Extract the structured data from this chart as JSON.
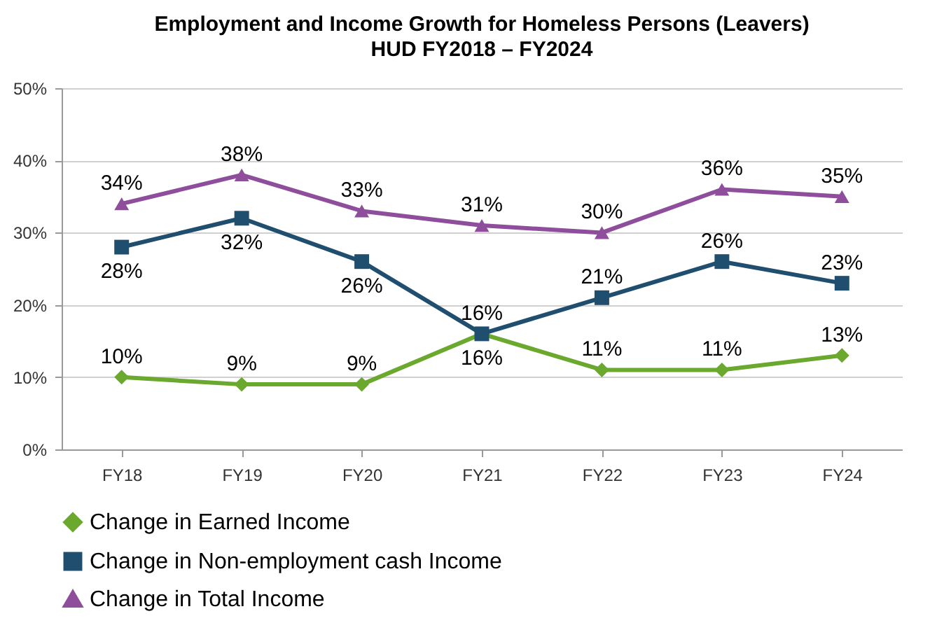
{
  "chart_data": {
    "type": "line",
    "title": "Employment and Income Growth for Homeless Persons (Leavers)",
    "subtitle": "HUD FY2018 – FY2024",
    "categories": [
      "FY18",
      "FY19",
      "FY20",
      "FY21",
      "FY22",
      "FY23",
      "FY24"
    ],
    "series": [
      {
        "name": "Change in Earned Income",
        "color": "#6aa82e",
        "marker": "diamond",
        "values": [
          10,
          9,
          9,
          16,
          11,
          11,
          13
        ],
        "value_labels": [
          "10%",
          "9%",
          "9%",
          "16%",
          "11%",
          "11%",
          "13%"
        ]
      },
      {
        "name": "Change in Non-employment cash Income",
        "color": "#1f4e6e",
        "marker": "square",
        "values": [
          28,
          32,
          26,
          16,
          21,
          26,
          23
        ],
        "value_labels": [
          "28%",
          "32%",
          "26%",
          "16%",
          "21%",
          "26%",
          "23%"
        ]
      },
      {
        "name": "Change in Total Income",
        "color": "#8e4e9c",
        "marker": "triangle",
        "values": [
          34,
          38,
          33,
          31,
          30,
          36,
          35
        ],
        "value_labels": [
          "34%",
          "38%",
          "33%",
          "31%",
          "30%",
          "36%",
          "35%"
        ]
      }
    ],
    "ylim": [
      0,
      50
    ],
    "yticks": [
      {
        "value": 0,
        "label": "0%"
      },
      {
        "value": 10,
        "label": "10%"
      },
      {
        "value": 20,
        "label": "20%"
      },
      {
        "value": 30,
        "label": "30%"
      },
      {
        "value": 40,
        "label": "40%"
      },
      {
        "value": 50,
        "label": "50%"
      }
    ],
    "grid": "y",
    "legend": "bottom"
  }
}
